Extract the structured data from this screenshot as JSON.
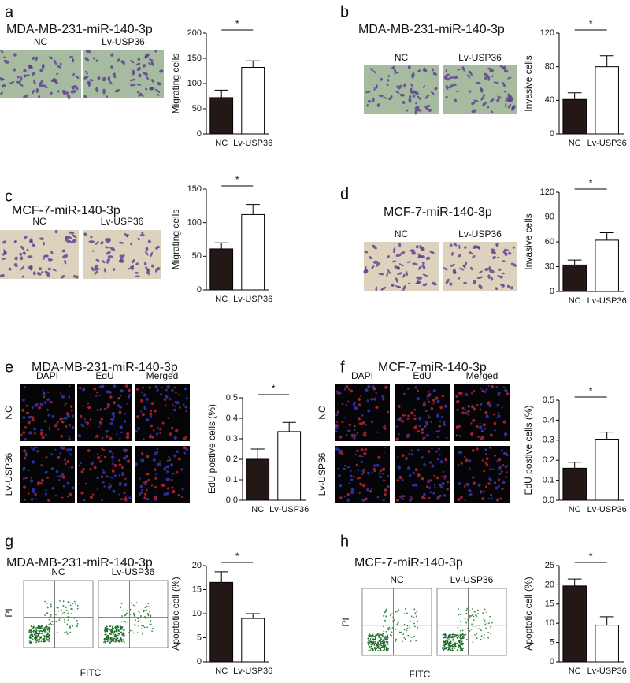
{
  "panels": [
    {
      "letter": "a",
      "title": "MDA-MB-231-miR-140-3p",
      "image_labels": [
        "NC",
        "Lv-USP36"
      ]
    },
    {
      "letter": "b",
      "title": "MDA-MB-231-miR-140-3p",
      "image_labels": [
        "NC",
        "Lv-USP36"
      ]
    },
    {
      "letter": "c",
      "title": "MCF-7-miR-140-3p",
      "image_labels": [
        "NC",
        "Lv-USP36"
      ]
    },
    {
      "letter": "d",
      "title": "MCF-7-miR-140-3p",
      "image_labels": [
        "NC",
        "Lv-USP36"
      ]
    },
    {
      "letter": "e",
      "title": "MDA-MB-231-miR-140-3p",
      "column_labels": [
        "DAPI",
        "EdU",
        "Merged"
      ],
      "row_labels": [
        "NC",
        "Lv-USP36"
      ]
    },
    {
      "letter": "f",
      "title": "MCF-7-miR-140-3p",
      "column_labels": [
        "DAPI",
        "EdU",
        "Merged"
      ],
      "row_labels": [
        "NC",
        "Lv-USP36"
      ]
    },
    {
      "letter": "g",
      "title": "MDA-MB-231-miR-140-3p",
      "image_labels": [
        "NC",
        "Lv-USP36"
      ],
      "y_axis_label": "PI",
      "x_axis_label": "FITC"
    },
    {
      "letter": "h",
      "title": "MCF-7-miR-140-3p",
      "image_labels": [
        "NC",
        "Lv-USP36"
      ],
      "y_axis_label": "PI",
      "x_axis_label": "FITC"
    }
  ],
  "chart_data": [
    {
      "type": "bar",
      "ylabel": "Migrating cells",
      "categories": [
        "NC",
        "Lv-USP36"
      ],
      "values": [
        72,
        132
      ],
      "errors": [
        15,
        13
      ],
      "colors": [
        "#231815",
        "#ffffff"
      ],
      "significance": "*",
      "ylim": [
        0,
        200
      ],
      "yticks": [
        0,
        50,
        100,
        150,
        200
      ]
    },
    {
      "type": "bar",
      "ylabel": "Invasive cells",
      "categories": [
        "NC",
        "Lv-USP36"
      ],
      "values": [
        41,
        80
      ],
      "errors": [
        8,
        13
      ],
      "colors": [
        "#231815",
        "#ffffff"
      ],
      "significance": "*",
      "ylim": [
        0,
        120
      ],
      "yticks": [
        0,
        40,
        80,
        120
      ]
    },
    {
      "type": "bar",
      "ylabel": "Migrating cells",
      "categories": [
        "NC",
        "Lv-USP36"
      ],
      "values": [
        61,
        112
      ],
      "errors": [
        9,
        15
      ],
      "colors": [
        "#231815",
        "#ffffff"
      ],
      "significance": "*",
      "ylim": [
        0,
        150
      ],
      "yticks": [
        0,
        50,
        100,
        150
      ]
    },
    {
      "type": "bar",
      "ylabel": "Invasive cells",
      "categories": [
        "NC",
        "Lv-USP36"
      ],
      "values": [
        32,
        62
      ],
      "errors": [
        6,
        9
      ],
      "colors": [
        "#231815",
        "#ffffff"
      ],
      "significance": "*",
      "ylim": [
        0,
        120
      ],
      "yticks": [
        0,
        30,
        60,
        90,
        120
      ]
    },
    {
      "type": "bar",
      "ylabel": "EdU postive cells (%)",
      "categories": [
        "NC",
        "Lv-USP36"
      ],
      "values": [
        0.2,
        0.335
      ],
      "errors": [
        0.05,
        0.045
      ],
      "colors": [
        "#231815",
        "#ffffff"
      ],
      "significance": "*",
      "ylim": [
        0,
        0.5
      ],
      "yticks": [
        {
          "value": 0,
          "label": "0.0"
        },
        0.1,
        0.2,
        0.3,
        0.4,
        0.5
      ]
    },
    {
      "type": "bar",
      "ylabel": "EdU postive cells (%)",
      "categories": [
        "NC",
        "Lv-USP36"
      ],
      "values": [
        0.16,
        0.305
      ],
      "errors": [
        0.03,
        0.035
      ],
      "colors": [
        "#231815",
        "#ffffff"
      ],
      "significance": "*",
      "ylim": [
        0,
        0.5
      ],
      "yticks": [
        {
          "value": 0,
          "label": "0.0"
        },
        0.1,
        0.2,
        0.3,
        0.4,
        0.5
      ]
    },
    {
      "type": "bar",
      "ylabel": "Apoptotic cell (%)",
      "categories": [
        "NC",
        "Lv-USP36"
      ],
      "values": [
        16.5,
        9
      ],
      "errors": [
        2.2,
        1
      ],
      "colors": [
        "#231815",
        "#ffffff"
      ],
      "significance": "*",
      "ylim": [
        0,
        20
      ],
      "yticks": [
        0,
        5,
        10,
        15,
        20
      ]
    },
    {
      "type": "bar",
      "ylabel": "Apoptotic cell (%)",
      "categories": [
        "NC",
        "Lv-USP36"
      ],
      "values": [
        19.7,
        9.5
      ],
      "errors": [
        1.8,
        2.2
      ],
      "colors": [
        "#231815",
        "#ffffff"
      ],
      "significance": "*",
      "ylim": [
        0,
        25
      ],
      "yticks": [
        0,
        5,
        10,
        15,
        20,
        25
      ]
    }
  ]
}
